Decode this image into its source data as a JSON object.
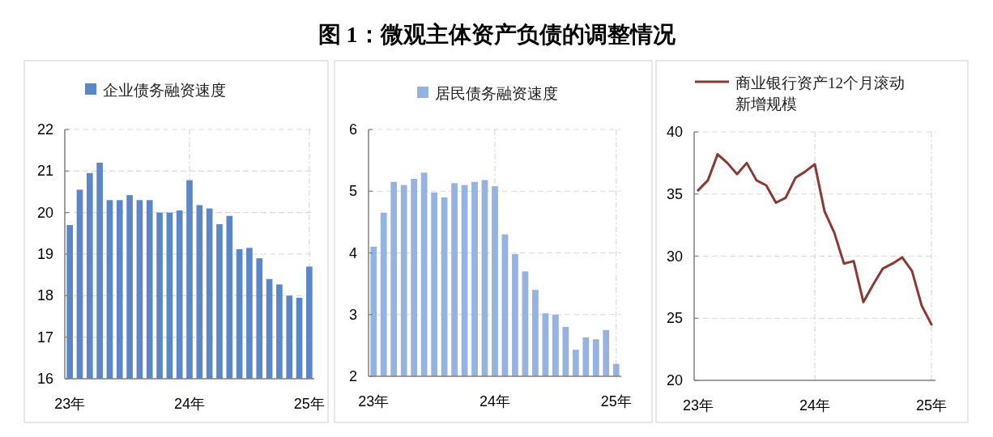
{
  "chart_data": [
    {
      "type": "bar",
      "categories": [
        "23年",
        null,
        null,
        null,
        null,
        null,
        null,
        null,
        null,
        null,
        null,
        null,
        "24年",
        null,
        null,
        null,
        null,
        null,
        null,
        null,
        null,
        null,
        null,
        null,
        "25年"
      ],
      "series": [
        {
          "name": "企业债务融资速度",
          "color": "#5b87c9",
          "values": [
            19.7,
            20.55,
            20.95,
            21.2,
            20.3,
            20.3,
            20.42,
            20.3,
            20.3,
            20.0,
            20.0,
            20.05,
            20.78,
            20.18,
            20.1,
            19.72,
            19.92,
            19.12,
            19.15,
            18.9,
            18.4,
            18.27,
            18.0,
            17.95,
            18.7
          ]
        }
      ],
      "ylim": [
        16,
        22
      ],
      "yticks": [
        16,
        17,
        18,
        19,
        20,
        21,
        22
      ],
      "grid": true,
      "legend": "top"
    },
    {
      "type": "bar",
      "title": "图 1：微观主体资产负债的调整情况",
      "categories": [
        "23年",
        null,
        null,
        null,
        null,
        null,
        null,
        null,
        null,
        null,
        null,
        null,
        "24年",
        null,
        null,
        null,
        null,
        null,
        null,
        null,
        null,
        null,
        null,
        null,
        "25年"
      ],
      "series": [
        {
          "name": "居民债务融资速度",
          "color": "#94b3e0",
          "values": [
            4.1,
            4.65,
            5.15,
            5.1,
            5.2,
            5.3,
            4.98,
            4.9,
            5.13,
            5.1,
            5.15,
            5.18,
            5.08,
            4.3,
            3.98,
            3.7,
            3.4,
            3.02,
            3.0,
            2.8,
            2.43,
            2.63,
            2.6,
            2.75,
            2.2
          ]
        }
      ],
      "ylim": [
        2,
        6
      ],
      "yticks": [
        2,
        3,
        4,
        5,
        6
      ],
      "grid": true,
      "legend": "top"
    },
    {
      "type": "line",
      "categories": [
        "23年",
        null,
        null,
        null,
        null,
        null,
        null,
        null,
        null,
        null,
        null,
        null,
        "24年",
        null,
        null,
        null,
        null,
        null,
        null,
        null,
        null,
        null,
        null,
        null,
        "25年"
      ],
      "series": [
        {
          "name": "商业银行资产12个月滚动新增规模",
          "color": "#8b3a32",
          "values": [
            35.3,
            36.1,
            38.2,
            37.5,
            36.6,
            37.5,
            36.1,
            35.7,
            34.3,
            34.7,
            36.3,
            36.8,
            37.4,
            33.6,
            31.9,
            29.4,
            29.6,
            26.3,
            27.7,
            29.0,
            29.4,
            29.9,
            28.8,
            26.0,
            24.5
          ]
        }
      ],
      "ylim": [
        20,
        40
      ],
      "yticks": [
        20,
        25,
        30,
        35,
        40
      ],
      "grid": true,
      "legend": "top"
    }
  ]
}
